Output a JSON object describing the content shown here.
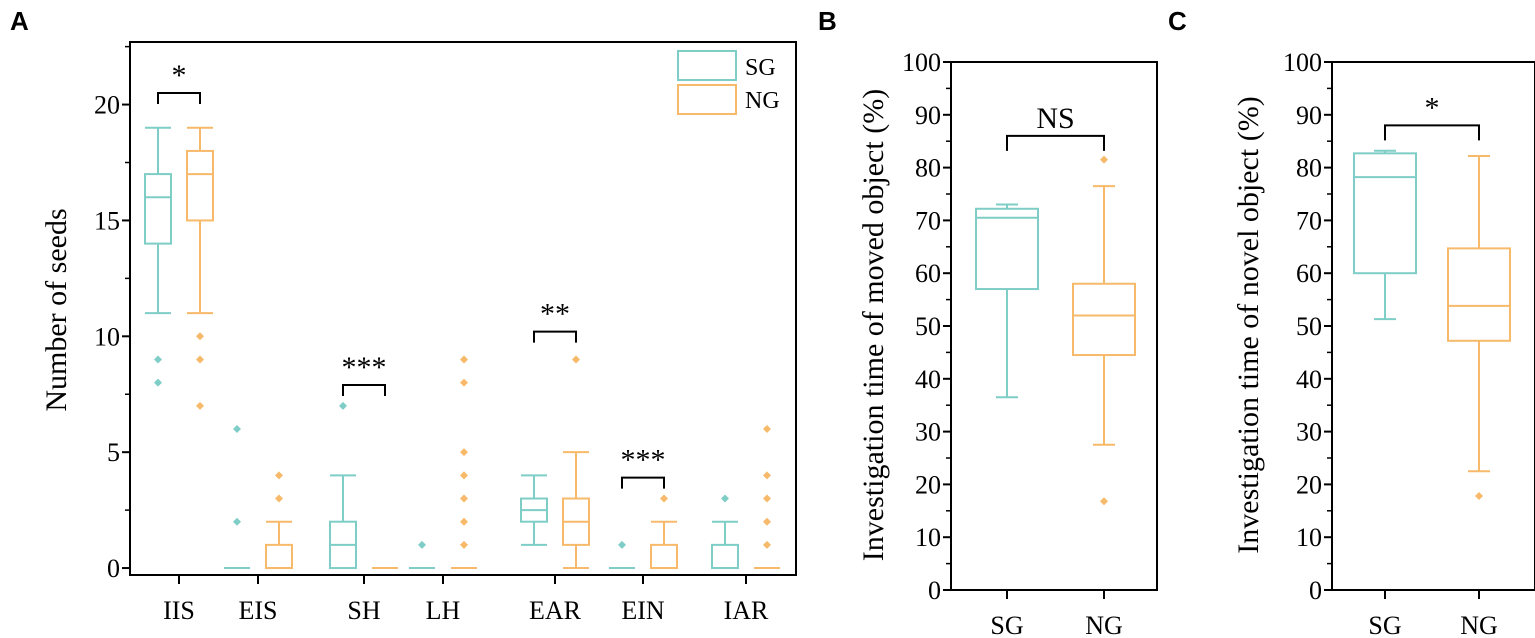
{
  "colors": {
    "SG": "#7ecdc6",
    "NG": "#f7b96a",
    "axis": "#000000"
  },
  "chart_data": [
    {
      "panel": "A",
      "type": "box",
      "ylabel": "Number of seeds",
      "xlabel": "",
      "ylim": [
        -0.3,
        22.7
      ],
      "yticks": [
        0,
        5,
        10,
        15,
        20
      ],
      "yticklabels": [
        "0",
        "5",
        "10",
        "15",
        "20"
      ],
      "categories": [
        "IIS",
        "EIS",
        "SH",
        "LH",
        "EAR",
        "EIN",
        "IAR"
      ],
      "legend": {
        "position": "top-right",
        "entries": [
          "SG",
          "NG"
        ]
      },
      "series": [
        {
          "name": "SG",
          "boxes": [
            {
              "q1": 14,
              "median": 16,
              "q3": 17,
              "whisker_low": 11,
              "whisker_high": 19,
              "outliers": [
                9,
                8
              ]
            },
            {
              "q1": 0,
              "median": 0,
              "q3": 0,
              "whisker_low": 0,
              "whisker_high": 0,
              "outliers": [
                6,
                2
              ]
            },
            {
              "q1": 0,
              "median": 1,
              "q3": 2,
              "whisker_low": 0,
              "whisker_high": 4,
              "outliers": [
                7
              ]
            },
            {
              "q1": 0,
              "median": 0,
              "q3": 0,
              "whisker_low": 0,
              "whisker_high": 0,
              "outliers": [
                1
              ]
            },
            {
              "q1": 2,
              "median": 2.5,
              "q3": 3,
              "whisker_low": 1,
              "whisker_high": 4,
              "outliers": []
            },
            {
              "q1": 0,
              "median": 0,
              "q3": 0,
              "whisker_low": 0,
              "whisker_high": 0,
              "outliers": [
                1
              ]
            },
            {
              "q1": 0,
              "median": 0,
              "q3": 1,
              "whisker_low": 0,
              "whisker_high": 2,
              "outliers": [
                3
              ]
            }
          ]
        },
        {
          "name": "NG",
          "boxes": [
            {
              "q1": 15,
              "median": 17,
              "q3": 18,
              "whisker_low": 11,
              "whisker_high": 19,
              "outliers": [
                10,
                9,
                7
              ]
            },
            {
              "q1": 0,
              "median": 0,
              "q3": 1,
              "whisker_low": 0,
              "whisker_high": 2,
              "outliers": [
                4,
                3
              ]
            },
            {
              "q1": 0,
              "median": 0,
              "q3": 0,
              "whisker_low": 0,
              "whisker_high": 0,
              "outliers": []
            },
            {
              "q1": 0,
              "median": 0,
              "q3": 0,
              "whisker_low": 0,
              "whisker_high": 0,
              "outliers": [
                9,
                8,
                5,
                4,
                3,
                2,
                1
              ]
            },
            {
              "q1": 1,
              "median": 2,
              "q3": 3,
              "whisker_low": 0,
              "whisker_high": 5,
              "outliers": [
                9
              ]
            },
            {
              "q1": 0,
              "median": 0,
              "q3": 1,
              "whisker_low": 0,
              "whisker_high": 2,
              "outliers": [
                3
              ]
            },
            {
              "q1": 0,
              "median": 0,
              "q3": 0,
              "whisker_low": 0,
              "whisker_high": 0,
              "outliers": [
                6,
                4,
                3,
                2,
                1
              ]
            }
          ]
        }
      ],
      "annotations": [
        {
          "category_index": 0,
          "text": "*",
          "bracket_value": 20.5
        },
        {
          "category_index": 2,
          "text": "***",
          "bracket_value": 7.9
        },
        {
          "category_index": 4,
          "text": "**",
          "bracket_value": 10.2
        },
        {
          "category_index": 5,
          "text": "***",
          "bracket_value": 3.9
        }
      ]
    },
    {
      "panel": "B",
      "type": "box",
      "ylabel": "Investigation time of moved object (%)",
      "xlabel": "",
      "ylim": [
        0,
        100
      ],
      "yticks": [
        0,
        10,
        20,
        30,
        40,
        50,
        60,
        70,
        80,
        90,
        100
      ],
      "yticklabels": [
        "0",
        "10",
        "20",
        "30",
        "40",
        "50",
        "60",
        "70",
        "80",
        "90",
        "100"
      ],
      "categories": [
        "SG",
        "NG"
      ],
      "series": [
        {
          "name": "Groups",
          "boxes": [
            {
              "group": "SG",
              "q1": 57,
              "median": 70.5,
              "q3": 72.2,
              "whisker_low": 36.5,
              "whisker_high": 73,
              "outliers": []
            },
            {
              "group": "NG",
              "q1": 44.5,
              "median": 52,
              "q3": 58,
              "whisker_low": 27.5,
              "whisker_high": 76.5,
              "outliers": [
                81.5,
                16.8
              ]
            }
          ]
        }
      ],
      "annotations": [
        {
          "text": "NS",
          "bracket_value": 86
        }
      ]
    },
    {
      "panel": "C",
      "type": "box",
      "ylabel": "Investigation time of novel object (%)",
      "xlabel": "",
      "ylim": [
        0,
        100
      ],
      "yticks": [
        0,
        10,
        20,
        30,
        40,
        50,
        60,
        70,
        80,
        90,
        100
      ],
      "yticklabels": [
        "0",
        "10",
        "20",
        "30",
        "40",
        "50",
        "60",
        "70",
        "80",
        "90",
        "100"
      ],
      "categories": [
        "SG",
        "NG"
      ],
      "series": [
        {
          "name": "Groups",
          "boxes": [
            {
              "group": "SG",
              "q1": 60,
              "median": 78.2,
              "q3": 82.7,
              "whisker_low": 51.3,
              "whisker_high": 83.2,
              "outliers": []
            },
            {
              "group": "NG",
              "q1": 47.2,
              "median": 53.8,
              "q3": 64.7,
              "whisker_low": 22.5,
              "whisker_high": 82.2,
              "outliers": [
                17.8
              ]
            }
          ]
        }
      ],
      "annotations": [
        {
          "text": "*",
          "bracket_value": 88
        }
      ]
    }
  ]
}
